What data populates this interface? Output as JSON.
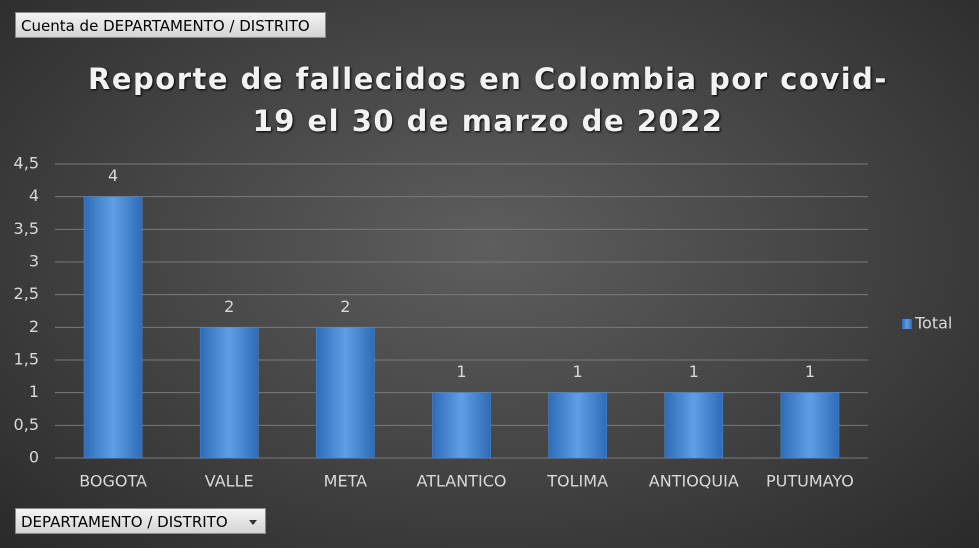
{
  "chart_data": {
    "type": "bar",
    "title": "Reporte de fallecidos en Colombia por covid-19 el 30 de marzo de 2022",
    "value_field_button": "Cuenta de DEPARTAMENTO / DISTRITO",
    "axis_field_button": "DEPARTAMENTO / DISTRITO",
    "categories": [
      "BOGOTA",
      "VALLE",
      "META",
      "ATLANTICO",
      "TOLIMA",
      "ANTIOQUIA",
      "PUTUMAYO"
    ],
    "series": [
      {
        "name": "Total",
        "color": "#4f8fd6",
        "values": [
          4,
          2,
          2,
          1,
          1,
          1,
          1
        ]
      }
    ],
    "ylim": [
      0,
      4.5
    ],
    "yticks": [
      0,
      {
        "value": 0.5,
        "label": "0,5"
      },
      1,
      {
        "value": 1.5,
        "label": "1,5"
      },
      2,
      {
        "value": 2.5,
        "label": "2,5"
      },
      3,
      {
        "value": 3.5,
        "label": "3,5"
      },
      4,
      {
        "value": 4.5,
        "label": "4,5"
      }
    ],
    "grid": true,
    "legend": "right",
    "data_labels": true
  }
}
